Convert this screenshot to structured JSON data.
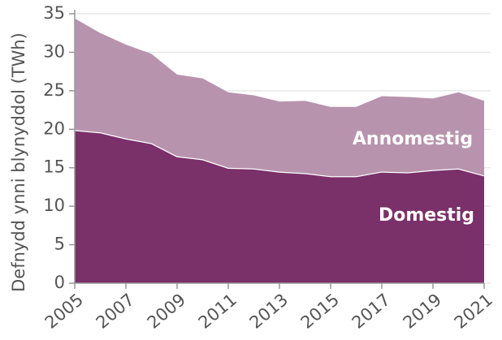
{
  "chart_data": {
    "type": "stacked_area",
    "y_label": "Defnydd ynni blynyddol (TWh)",
    "x": [
      2005,
      2006,
      2007,
      2008,
      2009,
      2010,
      2011,
      2012,
      2013,
      2014,
      2015,
      2016,
      2017,
      2018,
      2019,
      2020,
      2021
    ],
    "series": [
      {
        "name": "Domestig",
        "color": "#7a3069",
        "values": [
          19.9,
          19.6,
          18.8,
          18.2,
          16.5,
          16.1,
          15.0,
          14.9,
          14.5,
          14.3,
          13.9,
          13.9,
          14.5,
          14.4,
          14.7,
          14.9,
          14.0
        ]
      },
      {
        "name": "Annomestig",
        "color": "#b893ae",
        "values": [
          14.5,
          12.9,
          12.2,
          11.6,
          10.6,
          10.5,
          9.8,
          9.5,
          9.1,
          9.4,
          9.0,
          9.0,
          9.8,
          9.8,
          9.3,
          9.9,
          9.7
        ]
      }
    ],
    "xlim": [
      2005,
      2021
    ],
    "xticks": [
      2005,
      2007,
      2009,
      2011,
      2013,
      2015,
      2017,
      2019,
      2021
    ],
    "ylim": [
      0,
      35
    ],
    "yticks": [
      0,
      5,
      10,
      15,
      20,
      25,
      30,
      35
    ],
    "grid": true
  }
}
